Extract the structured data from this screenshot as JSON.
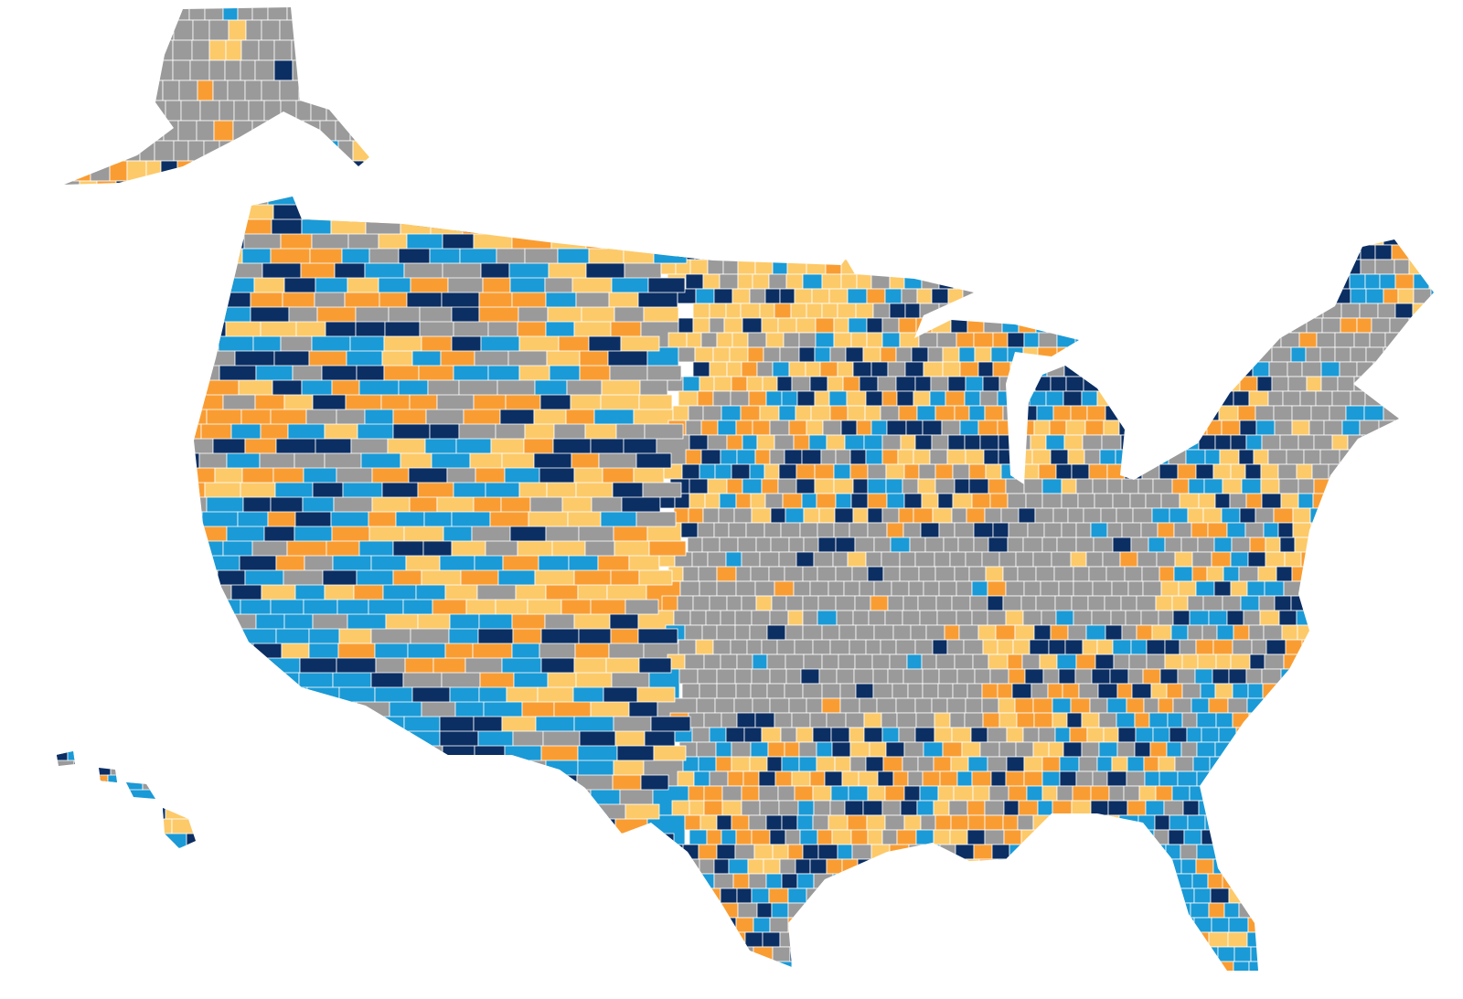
{
  "map": {
    "palette": [
      "#0b2e63",
      "#1a9ad6",
      "#f99d33",
      "#fdca6a",
      "#9a9a9a"
    ]
  }
}
